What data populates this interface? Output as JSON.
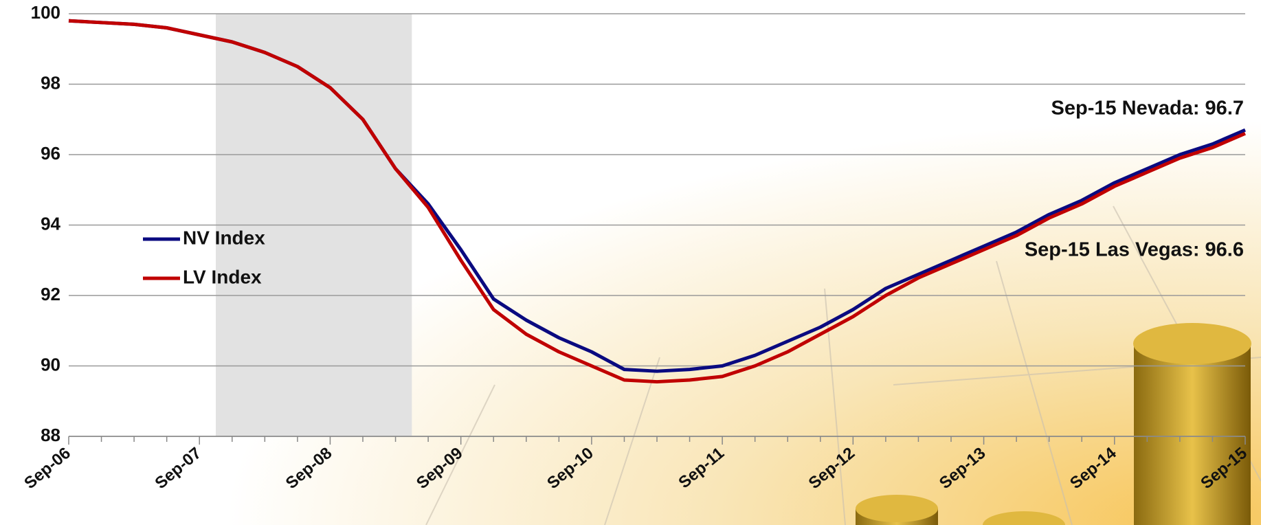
{
  "chart_data": {
    "type": "line",
    "categories": [
      "Sep-06",
      null,
      null,
      null,
      "Sep-07",
      null,
      null,
      null,
      "Sep-08",
      null,
      null,
      null,
      "Sep-09",
      null,
      null,
      null,
      "Sep-10",
      null,
      null,
      null,
      "Sep-11",
      null,
      null,
      null,
      "Sep-12",
      null,
      null,
      null,
      "Sep-13",
      null,
      null,
      null,
      "Sep-14",
      null,
      null,
      null,
      "Sep-15"
    ],
    "series": [
      {
        "name": "NV Index",
        "color": "#0a0a80",
        "values": [
          99.8,
          99.75,
          99.7,
          99.6,
          99.4,
          99.2,
          98.9,
          98.5,
          97.9,
          97.0,
          95.6,
          94.6,
          93.3,
          91.9,
          91.3,
          90.8,
          90.4,
          89.9,
          89.85,
          89.9,
          90.0,
          90.3,
          90.7,
          91.1,
          91.6,
          92.2,
          92.6,
          93.0,
          93.4,
          93.8,
          94.3,
          94.7,
          95.2,
          95.6,
          96.0,
          96.3,
          96.7
        ]
      },
      {
        "name": "LV Index",
        "color": "#c00000",
        "values": [
          99.8,
          99.75,
          99.7,
          99.6,
          99.4,
          99.2,
          98.9,
          98.5,
          97.9,
          97.0,
          95.6,
          94.5,
          93.0,
          91.6,
          90.9,
          90.4,
          90.0,
          89.6,
          89.55,
          89.6,
          89.7,
          90.0,
          90.4,
          90.9,
          91.4,
          92.0,
          92.5,
          92.9,
          93.3,
          93.7,
          94.2,
          94.6,
          95.1,
          95.5,
          95.9,
          96.2,
          96.6
        ]
      }
    ],
    "ylim": [
      88,
      100
    ],
    "yticks": [
      88,
      90,
      92,
      94,
      96,
      98,
      100
    ],
    "grid": true,
    "shade": [
      4.5,
      10.5
    ],
    "annotations": [
      "Sep-15 Nevada: 96.7",
      "Sep-15 Las Vegas: 96.6"
    ]
  }
}
